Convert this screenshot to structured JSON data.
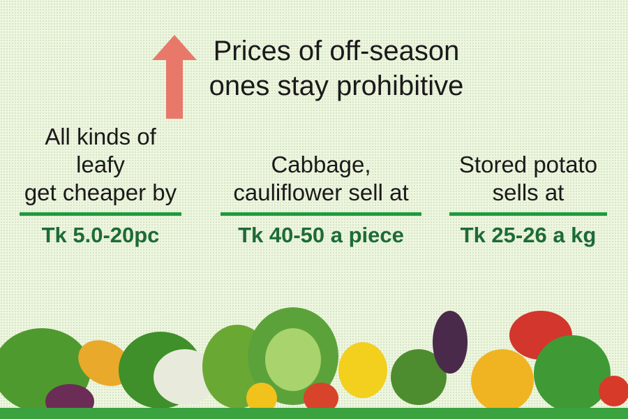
{
  "headline": {
    "line1": "Prices of off-season",
    "line2": "ones stay prohibitive",
    "icon": "arrow-up-icon",
    "arrow_color": "#e8796a"
  },
  "columns": [
    {
      "label_line1": "All kinds of leafy",
      "label_line2": "get cheaper by",
      "value": "Tk 5.0-20pc"
    },
    {
      "label_line1": "Cabbage,",
      "label_line2": "cauliflower sell at",
      "value": "Tk 40-50 a piece"
    },
    {
      "label_line1": "Stored potato",
      "label_line2": "sells at",
      "value": "Tk 25-26 a kg"
    }
  ],
  "colors": {
    "accent_line": "#1e9a3e",
    "value_text": "#1d6b35",
    "ground": "#3aa23f"
  }
}
